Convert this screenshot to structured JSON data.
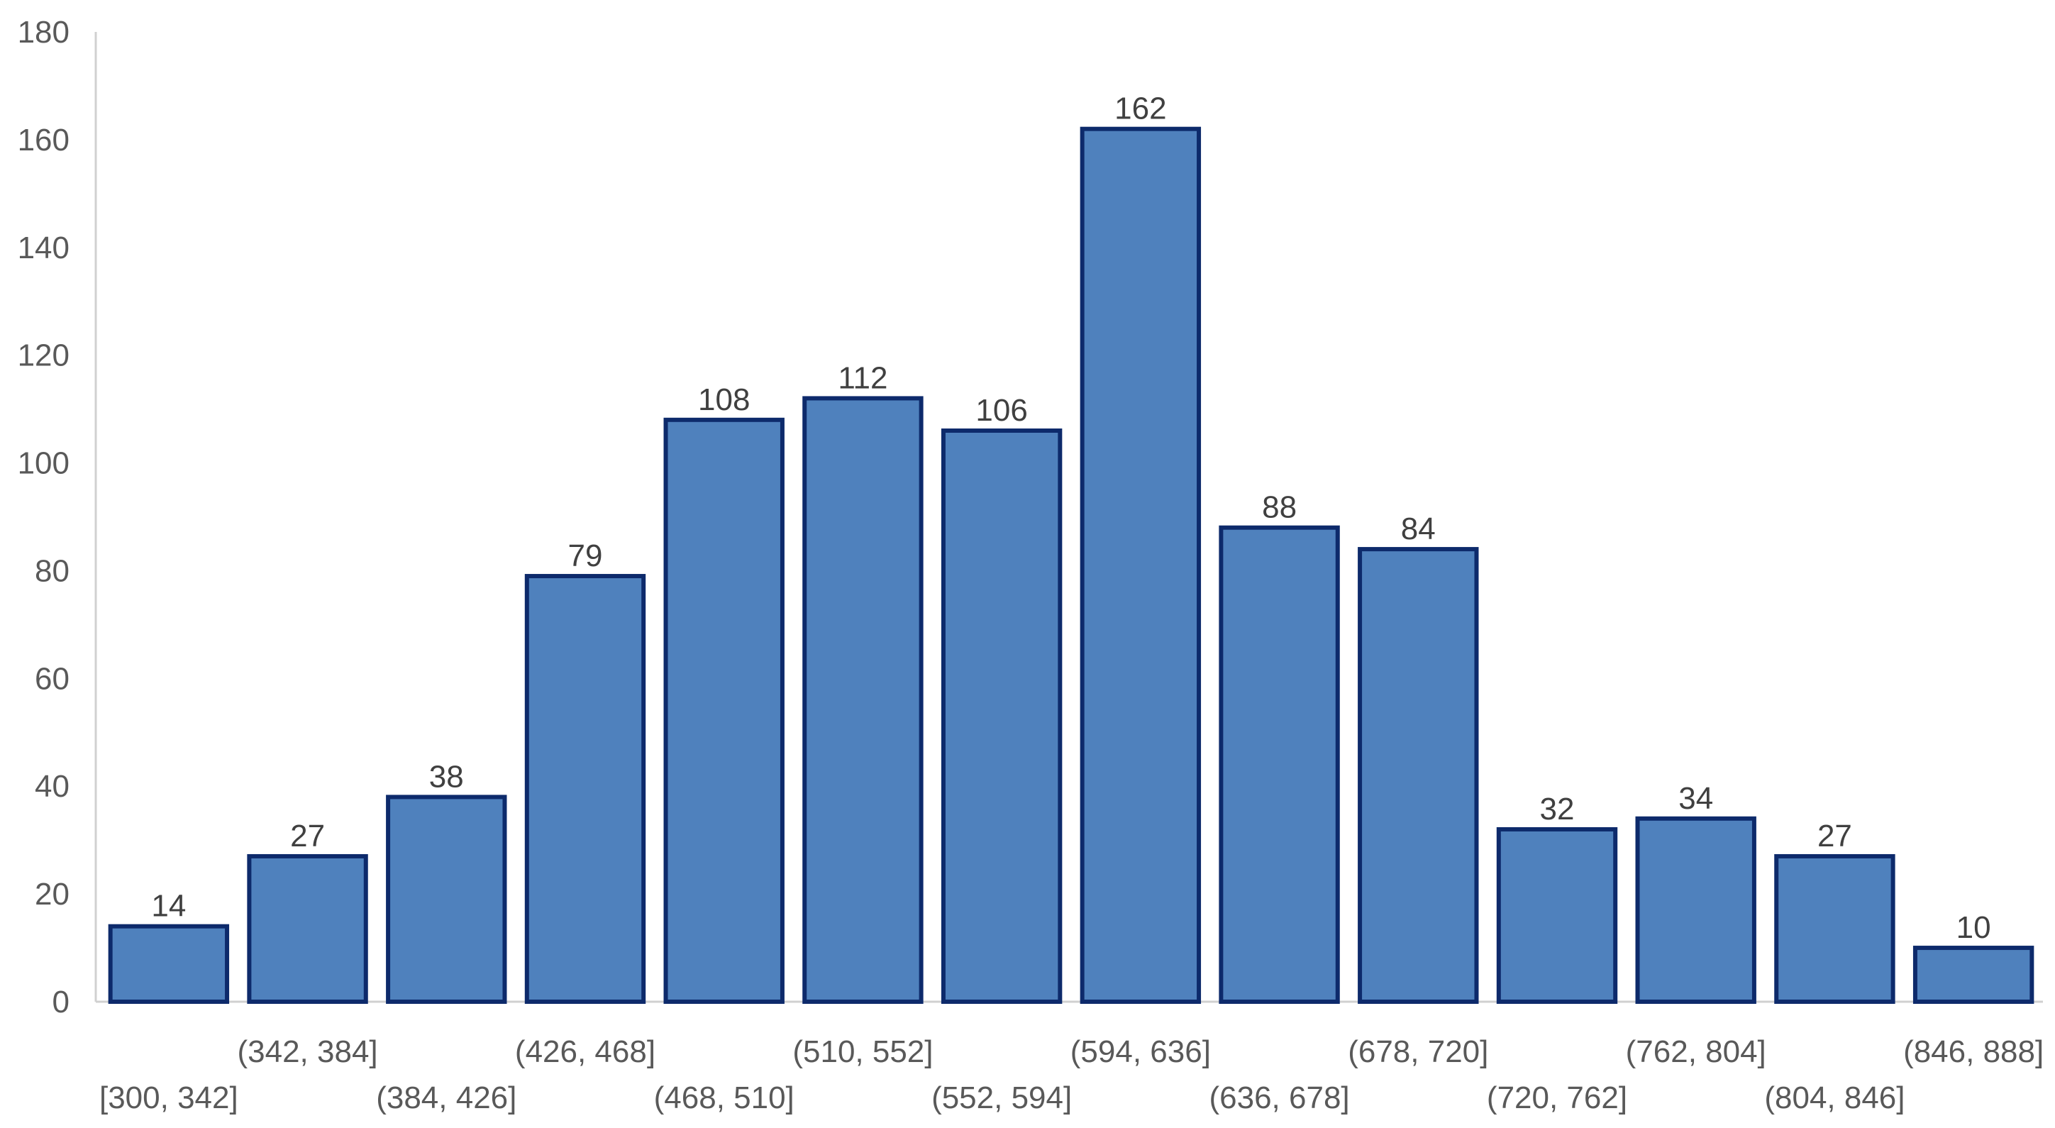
{
  "chart_data": {
    "type": "bar",
    "title": "",
    "xlabel": "",
    "ylabel": "",
    "categories": [
      "[300, 342]",
      "(342, 384]",
      "(384, 426]",
      "(426, 468]",
      "(468, 510]",
      "(510, 552]",
      "(552, 594]",
      "(594, 636]",
      "(636, 678]",
      "(678, 720]",
      "(720, 762]",
      "(762, 804]",
      "(804, 846]",
      "(846, 888]"
    ],
    "values": [
      14,
      27,
      38,
      79,
      108,
      112,
      106,
      162,
      88,
      84,
      32,
      34,
      27,
      10
    ],
    "ylim": [
      0,
      180
    ],
    "yticks": [
      0,
      20,
      40,
      60,
      80,
      100,
      120,
      140,
      160,
      180
    ],
    "grid": false,
    "legend": "none",
    "data_labels": true,
    "colors": {
      "bar_fill": "#4f81bd",
      "bar_border": "#0d2a6b"
    }
  }
}
